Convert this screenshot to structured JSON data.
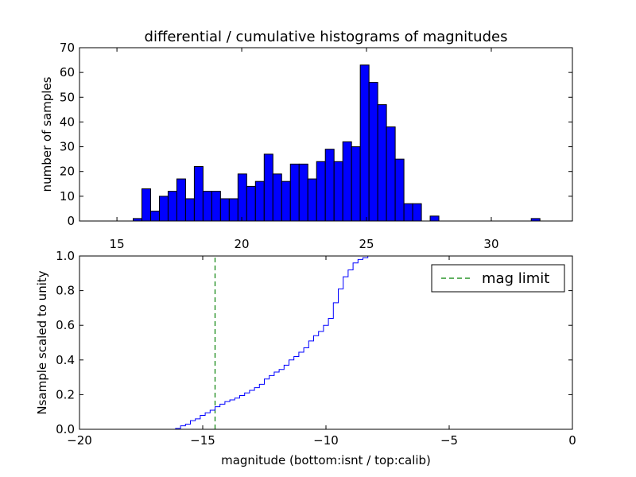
{
  "colors": {
    "bar_fill": "#0000ff",
    "cum_line": "#0000ff",
    "mag_limit": "#008000",
    "axes": "#000000",
    "bg": "#ffffff"
  },
  "chart_data": [
    {
      "type": "bar",
      "title": "differential / cumulative histograms of magnitudes",
      "xlabel": "",
      "ylabel": "number of samples",
      "xlim": [
        13.5,
        33.25
      ],
      "ylim": [
        0,
        70
      ],
      "xticks": [
        15,
        20,
        25,
        30
      ],
      "yticks": [
        0,
        10,
        20,
        30,
        40,
        50,
        60,
        70
      ],
      "bin_width": 0.35,
      "bins": [
        {
          "x": 15.65,
          "value": 1
        },
        {
          "x": 16.0,
          "value": 13
        },
        {
          "x": 16.35,
          "value": 4
        },
        {
          "x": 16.7,
          "value": 10
        },
        {
          "x": 17.05,
          "value": 12
        },
        {
          "x": 17.4,
          "value": 17
        },
        {
          "x": 17.75,
          "value": 9
        },
        {
          "x": 18.1,
          "value": 22
        },
        {
          "x": 18.45,
          "value": 12
        },
        {
          "x": 18.8,
          "value": 12
        },
        {
          "x": 19.15,
          "value": 9
        },
        {
          "x": 19.5,
          "value": 9
        },
        {
          "x": 19.85,
          "value": 19
        },
        {
          "x": 20.2,
          "value": 14
        },
        {
          "x": 20.55,
          "value": 16
        },
        {
          "x": 20.9,
          "value": 27
        },
        {
          "x": 21.25,
          "value": 19
        },
        {
          "x": 21.6,
          "value": 16
        },
        {
          "x": 21.95,
          "value": 23
        },
        {
          "x": 22.3,
          "value": 23
        },
        {
          "x": 22.65,
          "value": 17
        },
        {
          "x": 23.0,
          "value": 24
        },
        {
          "x": 23.35,
          "value": 29
        },
        {
          "x": 23.7,
          "value": 24
        },
        {
          "x": 24.05,
          "value": 32
        },
        {
          "x": 24.4,
          "value": 30
        },
        {
          "x": 24.75,
          "value": 63
        },
        {
          "x": 25.1,
          "value": 56
        },
        {
          "x": 25.45,
          "value": 47
        },
        {
          "x": 25.8,
          "value": 38
        },
        {
          "x": 26.15,
          "value": 25
        },
        {
          "x": 26.5,
          "value": 7
        },
        {
          "x": 26.85,
          "value": 7
        },
        {
          "x": 27.55,
          "value": 2
        },
        {
          "x": 31.6,
          "value": 1
        }
      ]
    },
    {
      "type": "line",
      "title": "",
      "xlabel": "magnitude (bottom:isnt / top:calib)",
      "ylabel": "Nsample scaled to unity",
      "xlim": [
        -20,
        0
      ],
      "ylim": [
        0,
        1.0
      ],
      "xticks": [
        -20,
        -15,
        -10,
        -5,
        0
      ],
      "xtick_labels": [
        "−20",
        "−15",
        "−10",
        "−5",
        "0"
      ],
      "yticks": [
        0.0,
        0.2,
        0.4,
        0.6,
        0.8,
        1.0
      ],
      "ytick_labels": [
        "0.0",
        "0.2",
        "0.4",
        "0.6",
        "0.8",
        "1.0"
      ],
      "series": [
        {
          "name": "cumulative",
          "style": "steps",
          "x": [
            -20,
            -16.1,
            -15.9,
            -15.7,
            -15.5,
            -15.3,
            -15.1,
            -14.9,
            -14.7,
            -14.5,
            -14.3,
            -14.1,
            -13.9,
            -13.7,
            -13.5,
            -13.3,
            -13.1,
            -12.9,
            -12.7,
            -12.5,
            -12.3,
            -12.1,
            -11.9,
            -11.7,
            -11.5,
            -11.3,
            -11.1,
            -10.9,
            -10.7,
            -10.5,
            -10.3,
            -10.1,
            -9.9,
            -9.7,
            -9.5,
            -9.3,
            -9.1,
            -8.9,
            -8.7,
            -8.5,
            -8.3,
            -8.1,
            -7.9,
            -7.7,
            0
          ],
          "y": [
            0,
            0.005,
            0.02,
            0.03,
            0.05,
            0.06,
            0.08,
            0.095,
            0.11,
            0.13,
            0.145,
            0.16,
            0.17,
            0.18,
            0.195,
            0.21,
            0.225,
            0.24,
            0.26,
            0.29,
            0.31,
            0.33,
            0.345,
            0.37,
            0.4,
            0.42,
            0.445,
            0.47,
            0.51,
            0.54,
            0.565,
            0.6,
            0.64,
            0.73,
            0.81,
            0.88,
            0.92,
            0.96,
            0.98,
            0.99,
            1.0,
            1.0,
            1.0,
            1.0,
            1.0
          ]
        }
      ],
      "mag_limit_x": -14.5,
      "legend": {
        "entries": [
          {
            "label": "mag limit",
            "style": "dashed",
            "color": "#008000"
          }
        ],
        "placement": "top-right"
      }
    }
  ]
}
